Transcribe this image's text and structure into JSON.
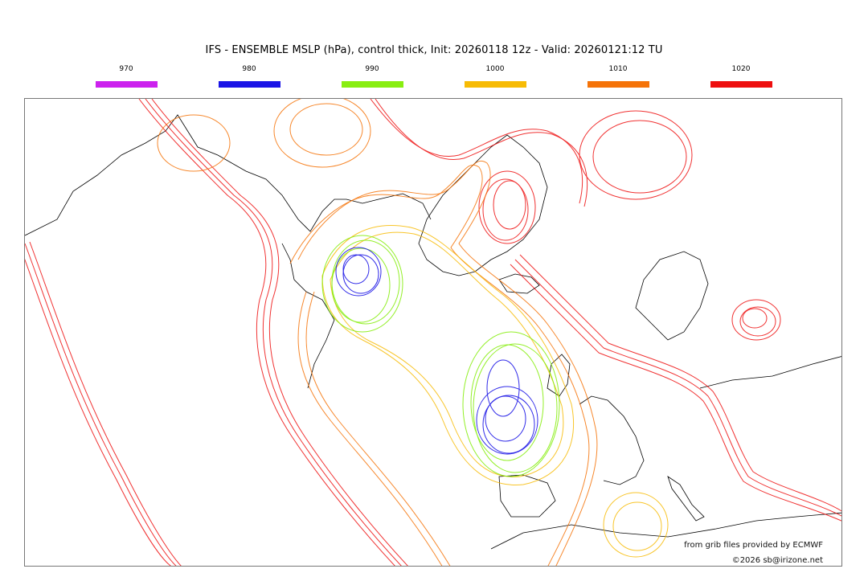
{
  "title": "IFS - ENSEMBLE MSLP (hPa), control thick, Init: 20260118 12z - Valid: 20260121:12 TU",
  "legend": [
    {
      "label": "970",
      "color": "#cc22ee"
    },
    {
      "label": "980",
      "color": "#1a14e6"
    },
    {
      "label": "990",
      "color": "#88ee11"
    },
    {
      "label": "1000",
      "color": "#f7bb05"
    },
    {
      "label": "1010",
      "color": "#f57308"
    },
    {
      "label": "1020",
      "color": "#ee0f0f"
    }
  ],
  "credits": {
    "source": "from grib files provided by ECMWF",
    "copyright": "©2026 sb@irizone.net"
  }
}
